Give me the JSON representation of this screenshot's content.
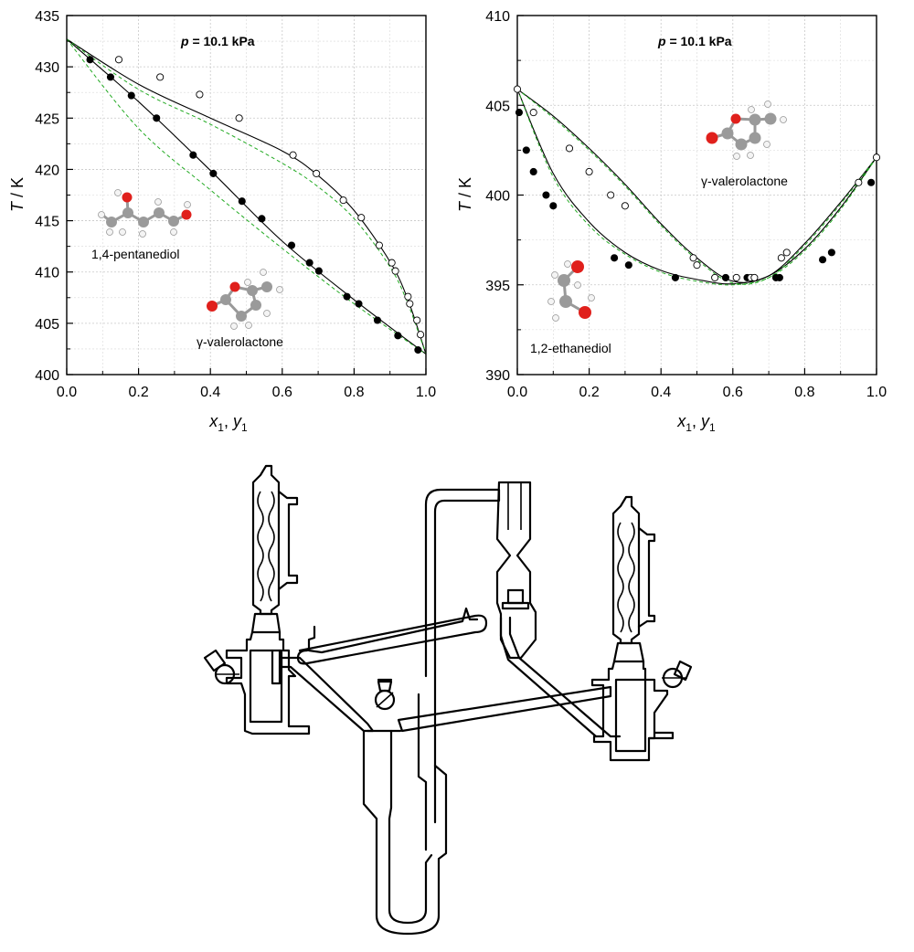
{
  "chart_data": [
    {
      "type": "scatter",
      "title": "",
      "annotation": "p = 10.1 kPa",
      "annotation_var": "p",
      "annotation_rest": " = 10.1 kPa",
      "xlabel_parts": [
        "x",
        "1",
        ", ",
        "y",
        "1"
      ],
      "ylabel_parts": [
        "T",
        " / K"
      ],
      "xlim": [
        0.0,
        1.0
      ],
      "ylim": [
        400,
        435
      ],
      "xticks": [
        "0.0",
        "0.2",
        "0.4",
        "0.6",
        "0.8",
        "1.0"
      ],
      "yticks": [
        "400",
        "405",
        "410",
        "415",
        "420",
        "425",
        "430",
        "435"
      ],
      "grid": true,
      "molecule_labels": [
        "1,4-pentanediol",
        "γ-valerolactone"
      ],
      "series": [
        {
          "marker": "filled",
          "x": [
            0.065,
            0.122,
            0.18,
            0.25,
            0.352,
            0.408,
            0.488,
            0.543,
            0.626,
            0.676,
            0.702,
            0.78,
            0.813,
            0.865,
            0.922,
            0.978
          ],
          "y": [
            430.7,
            429.0,
            427.2,
            425.0,
            421.4,
            419.6,
            416.9,
            415.2,
            412.6,
            410.9,
            410.1,
            407.6,
            406.9,
            405.3,
            403.8,
            402.4
          ]
        },
        {
          "marker": "open",
          "x": [
            0.145,
            0.26,
            0.37,
            0.48,
            0.63,
            0.695,
            0.77,
            0.82,
            0.87,
            0.905,
            0.915,
            0.95,
            0.955,
            0.975,
            0.985
          ],
          "y": [
            430.7,
            429.0,
            427.3,
            425.0,
            421.4,
            419.6,
            417.0,
            415.3,
            412.6,
            410.9,
            410.1,
            407.6,
            406.9,
            405.3,
            403.9
          ]
        },
        {
          "type": "line",
          "style": "solid",
          "color": "#000000",
          "x": [
            0.0,
            0.2,
            0.4,
            0.6,
            0.8,
            1.0
          ],
          "y": [
            432.7,
            426.6,
            419.9,
            413.0,
            407.3,
            402.0
          ]
        },
        {
          "type": "line",
          "style": "solid",
          "color": "#000000",
          "x": [
            0.0,
            0.2,
            0.4,
            0.6,
            0.7,
            0.8,
            0.9,
            0.95,
            1.0
          ],
          "y": [
            432.7,
            428.3,
            425.0,
            421.8,
            419.4,
            416.0,
            411.0,
            407.3,
            402.0
          ]
        },
        {
          "type": "line",
          "style": "dashed",
          "color": "#22aa22",
          "x": [
            0.0,
            0.2,
            0.4,
            0.6,
            0.8,
            1.0
          ],
          "y": [
            432.7,
            424.0,
            418.0,
            412.3,
            406.9,
            402.0
          ]
        },
        {
          "type": "line",
          "style": "dashed",
          "color": "#22aa22",
          "x": [
            0.0,
            0.2,
            0.4,
            0.6,
            0.7,
            0.8,
            0.9,
            0.95,
            1.0
          ],
          "y": [
            432.7,
            427.8,
            424.4,
            420.6,
            418.3,
            415.2,
            410.5,
            406.9,
            402.0
          ]
        }
      ]
    },
    {
      "type": "scatter",
      "title": "",
      "annotation": "p = 10.1 kPa",
      "annotation_var": "p",
      "annotation_rest": " = 10.1 kPa",
      "xlabel_parts": [
        "x",
        "1",
        ", ",
        "y",
        "1"
      ],
      "ylabel_parts": [
        "T",
        " / K"
      ],
      "xlim": [
        0.0,
        1.0
      ],
      "ylim": [
        390,
        410
      ],
      "xticks": [
        "0.0",
        "0.2",
        "0.4",
        "0.6",
        "0.8",
        "1.0"
      ],
      "yticks": [
        "390",
        "395",
        "400",
        "405",
        "410"
      ],
      "grid": true,
      "molecule_labels": [
        "γ-valerolactone",
        "1,2-ethanediol"
      ],
      "series": [
        {
          "marker": "filled",
          "x": [
            0.005,
            0.025,
            0.045,
            0.08,
            0.1,
            0.27,
            0.31,
            0.44,
            0.58,
            0.64,
            0.72,
            0.73,
            0.85,
            0.875,
            0.985
          ],
          "y": [
            404.6,
            402.5,
            401.3,
            400.0,
            399.4,
            396.5,
            396.1,
            395.4,
            395.4,
            395.4,
            395.4,
            395.4,
            396.4,
            396.8,
            400.7
          ]
        },
        {
          "marker": "open",
          "x": [
            0.0,
            0.045,
            0.145,
            0.2,
            0.26,
            0.3,
            0.49,
            0.5,
            0.55,
            0.61,
            0.65,
            0.66,
            0.735,
            0.75,
            0.95,
            1.0
          ],
          "y": [
            405.9,
            404.6,
            402.6,
            401.3,
            400.0,
            399.4,
            396.5,
            396.1,
            395.4,
            395.4,
            395.4,
            395.4,
            396.5,
            396.8,
            400.7,
            402.1
          ]
        },
        {
          "type": "line",
          "style": "solid",
          "color": "#000000",
          "x": [
            0.0,
            0.1,
            0.2,
            0.3,
            0.4,
            0.5,
            0.6,
            0.7,
            0.8,
            0.9,
            1.0
          ],
          "y": [
            405.9,
            401.2,
            398.5,
            396.8,
            395.8,
            395.3,
            395.05,
            395.5,
            397.0,
            399.3,
            402.1
          ]
        },
        {
          "type": "line",
          "style": "solid",
          "color": "#000000",
          "x": [
            0.0,
            0.1,
            0.2,
            0.3,
            0.4,
            0.5,
            0.6,
            0.7,
            0.8,
            0.9,
            1.0
          ],
          "y": [
            405.9,
            404.4,
            402.6,
            400.6,
            398.4,
            396.5,
            395.2,
            395.5,
            397.3,
            399.6,
            402.1
          ]
        },
        {
          "type": "line",
          "style": "dashed",
          "color": "#22aa22",
          "x": [
            0.0,
            0.1,
            0.2,
            0.3,
            0.4,
            0.5,
            0.6,
            0.7,
            0.8,
            0.9,
            1.0
          ],
          "y": [
            405.9,
            401.0,
            398.3,
            396.7,
            395.7,
            395.2,
            395.0,
            395.4,
            396.9,
            399.2,
            402.1
          ]
        },
        {
          "type": "line",
          "style": "dashed",
          "color": "#22aa22",
          "x": [
            0.0,
            0.1,
            0.2,
            0.3,
            0.4,
            0.5,
            0.6,
            0.7,
            0.8,
            0.9,
            1.0
          ],
          "y": [
            405.9,
            404.3,
            402.5,
            400.5,
            398.3,
            396.4,
            395.1,
            395.4,
            397.2,
            399.5,
            402.1
          ]
        }
      ]
    }
  ],
  "apparatus_diagram": {
    "label": ""
  }
}
